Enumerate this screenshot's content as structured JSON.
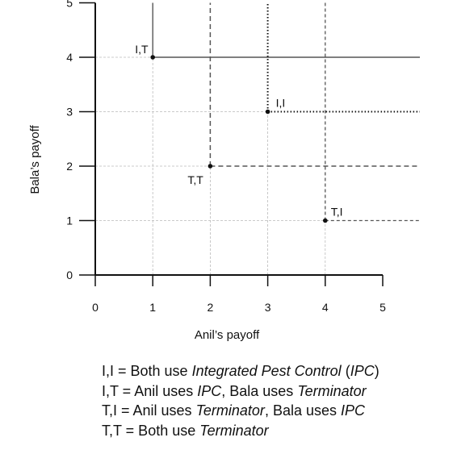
{
  "chart_data": {
    "type": "scatter",
    "xlabel": "Anil’s payoff",
    "ylabel": "Bala’s payoff",
    "xlim": [
      0,
      5
    ],
    "ylim": [
      0,
      5
    ],
    "x_ticks": [
      0,
      1,
      2,
      3,
      4,
      5
    ],
    "y_ticks": [
      0,
      1,
      2,
      3,
      4,
      5
    ],
    "grid": true,
    "points": [
      {
        "label": "I,T",
        "x": 1,
        "y": 4,
        "guide_style": "solid"
      },
      {
        "label": "T,T",
        "x": 2,
        "y": 2,
        "guide_style": "dashed"
      },
      {
        "label": "I,I",
        "x": 3,
        "y": 3,
        "guide_style": "dotted"
      },
      {
        "label": "T,I",
        "x": 4,
        "y": 1,
        "guide_style": "fine-dashed"
      }
    ],
    "colors": {
      "axis": "#111111",
      "grid": "#bbbbbb",
      "guides": "#555555",
      "points": "#111111"
    }
  },
  "legend": [
    [
      {
        "t": "I,I = Both use ",
        "i": false
      },
      {
        "t": "Integrated Pest Control",
        "i": true
      },
      {
        "t": " (",
        "i": false
      },
      {
        "t": "IPC",
        "i": true
      },
      {
        "t": ")",
        "i": false
      }
    ],
    [
      {
        "t": "I,T = Anil uses ",
        "i": false
      },
      {
        "t": "IPC",
        "i": true
      },
      {
        "t": ", Bala uses ",
        "i": false
      },
      {
        "t": "Terminator",
        "i": true
      }
    ],
    [
      {
        "t": "T,I = Anil uses ",
        "i": false
      },
      {
        "t": "Terminator",
        "i": true
      },
      {
        "t": ", Bala uses ",
        "i": false
      },
      {
        "t": "IPC",
        "i": true
      }
    ],
    [
      {
        "t": "T,T = Both use ",
        "i": false
      },
      {
        "t": "Terminator",
        "i": true
      }
    ]
  ]
}
